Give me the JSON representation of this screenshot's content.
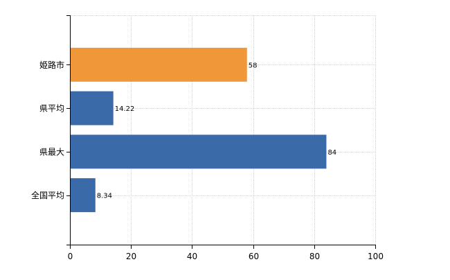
{
  "chart_data": {
    "type": "bar",
    "orientation": "horizontal",
    "categories": [
      "姫路市",
      "県平均",
      "県最大",
      "全国平均"
    ],
    "values": [
      58,
      14.22,
      84,
      8.34
    ],
    "value_labels": [
      "58",
      "14.22",
      "84",
      "8.34"
    ],
    "bar_colors": [
      "#f0973a",
      "#3a6aa8",
      "#3a6aa8",
      "#3a6aa8"
    ],
    "xlim": [
      0,
      100
    ],
    "x_ticks": [
      0,
      20,
      40,
      60,
      80,
      100
    ],
    "x_tick_labels": [
      "0",
      "20",
      "40",
      "60",
      "80",
      "100"
    ],
    "grid": true,
    "title": "",
    "xlabel": "",
    "ylabel": ""
  },
  "colors": {
    "highlight": "#f0973a",
    "default": "#3a6aa8",
    "grid": "#d3d3d3",
    "axis": "#000000"
  }
}
